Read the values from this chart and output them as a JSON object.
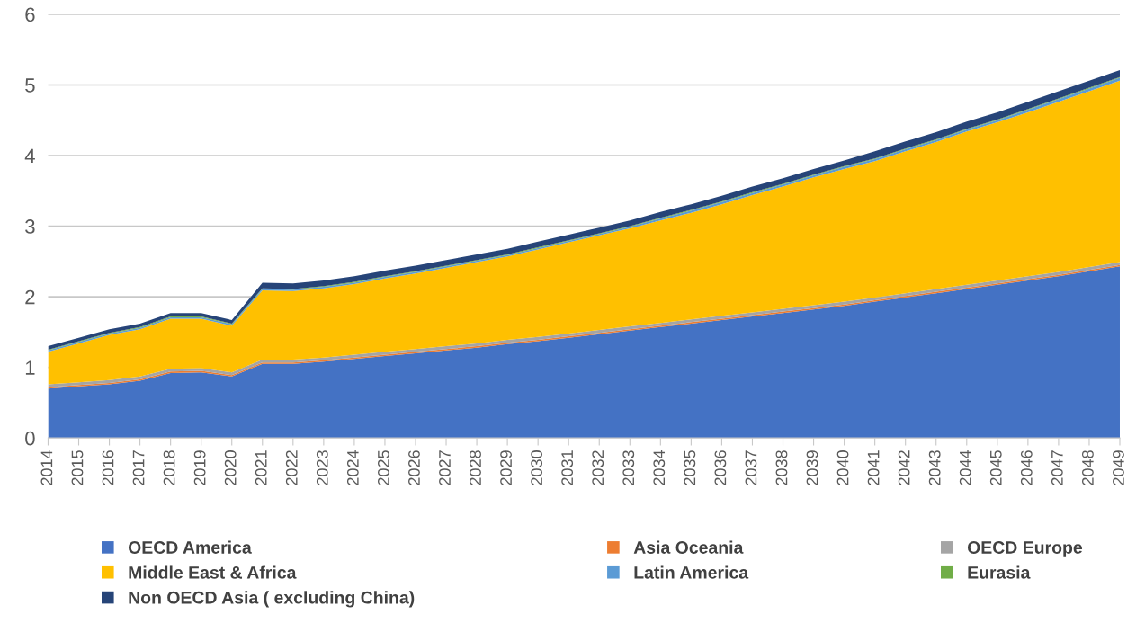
{
  "chart_data": {
    "type": "area",
    "stacked": true,
    "categories": [
      "2014",
      "2015",
      "2016",
      "2017",
      "2018",
      "2019",
      "2020",
      "2021",
      "2022",
      "2023",
      "2024",
      "2025",
      "2026",
      "2027",
      "2028",
      "2029",
      "2030",
      "2031",
      "2032",
      "2033",
      "2034",
      "2035",
      "2036",
      "2037",
      "2038",
      "2039",
      "2040",
      "2041",
      "2042",
      "2043",
      "2044",
      "2045",
      "2046",
      "2047",
      "2048",
      "2049"
    ],
    "series": [
      {
        "name": "OECD America",
        "color": "#4472c4",
        "values": [
          0.7,
          0.73,
          0.76,
          0.81,
          0.92,
          0.93,
          0.87,
          1.05,
          1.05,
          1.08,
          1.12,
          1.16,
          1.2,
          1.24,
          1.28,
          1.33,
          1.37,
          1.42,
          1.47,
          1.52,
          1.57,
          1.62,
          1.67,
          1.72,
          1.77,
          1.82,
          1.87,
          1.93,
          1.99,
          2.05,
          2.11,
          2.17,
          2.23,
          2.29,
          2.36,
          2.43
        ]
      },
      {
        "name": "Asia Oceania",
        "color": "#ed7d31",
        "values": [
          0.02,
          0.02,
          0.02,
          0.02,
          0.02,
          0.02,
          0.02,
          0.02,
          0.02,
          0.02,
          0.02,
          0.02,
          0.02,
          0.02,
          0.02,
          0.02,
          0.02,
          0.02,
          0.02,
          0.02,
          0.02,
          0.02,
          0.02,
          0.02,
          0.02,
          0.02,
          0.02,
          0.02,
          0.02,
          0.02,
          0.02,
          0.02,
          0.02,
          0.02,
          0.02,
          0.02
        ]
      },
      {
        "name": "OECD Europe",
        "color": "#a5a5a5",
        "values": [
          0.04,
          0.04,
          0.04,
          0.04,
          0.04,
          0.04,
          0.04,
          0.04,
          0.04,
          0.04,
          0.04,
          0.04,
          0.04,
          0.04,
          0.04,
          0.04,
          0.04,
          0.04,
          0.04,
          0.04,
          0.04,
          0.04,
          0.04,
          0.04,
          0.04,
          0.04,
          0.04,
          0.04,
          0.04,
          0.04,
          0.04,
          0.04,
          0.04,
          0.04,
          0.04,
          0.04
        ]
      },
      {
        "name": "Middle East & Africa",
        "color": "#ffc000",
        "values": [
          0.46,
          0.55,
          0.64,
          0.67,
          0.71,
          0.7,
          0.66,
          0.98,
          0.97,
          0.98,
          1.0,
          1.04,
          1.07,
          1.11,
          1.15,
          1.18,
          1.24,
          1.29,
          1.34,
          1.39,
          1.45,
          1.51,
          1.58,
          1.66,
          1.73,
          1.81,
          1.88,
          1.93,
          2.01,
          2.08,
          2.17,
          2.24,
          2.32,
          2.41,
          2.49,
          2.57
        ]
      },
      {
        "name": "Latin America",
        "color": "#5b9bd5",
        "values": [
          0.02,
          0.02,
          0.02,
          0.02,
          0.02,
          0.02,
          0.02,
          0.02,
          0.02,
          0.02,
          0.02,
          0.02,
          0.02,
          0.02,
          0.02,
          0.02,
          0.02,
          0.02,
          0.02,
          0.02,
          0.03,
          0.03,
          0.03,
          0.03,
          0.03,
          0.03,
          0.03,
          0.03,
          0.03,
          0.03,
          0.03,
          0.03,
          0.04,
          0.04,
          0.04,
          0.04
        ]
      },
      {
        "name": "Eurasia",
        "color": "#70ad47",
        "values": [
          0.01,
          0.01,
          0.01,
          0.01,
          0.01,
          0.01,
          0.01,
          0.01,
          0.01,
          0.01,
          0.01,
          0.01,
          0.01,
          0.01,
          0.01,
          0.01,
          0.01,
          0.01,
          0.01,
          0.01,
          0.01,
          0.01,
          0.01,
          0.01,
          0.01,
          0.01,
          0.01,
          0.01,
          0.01,
          0.01,
          0.01,
          0.01,
          0.01,
          0.01,
          0.01,
          0.01
        ]
      },
      {
        "name": "Non OECD Asia ( excluding China)",
        "color": "#264478",
        "values": [
          0.05,
          0.05,
          0.05,
          0.05,
          0.05,
          0.05,
          0.05,
          0.08,
          0.08,
          0.08,
          0.08,
          0.08,
          0.08,
          0.08,
          0.08,
          0.08,
          0.08,
          0.08,
          0.08,
          0.08,
          0.08,
          0.08,
          0.08,
          0.08,
          0.08,
          0.08,
          0.08,
          0.1,
          0.1,
          0.1,
          0.1,
          0.1,
          0.1,
          0.1,
          0.1,
          0.1
        ]
      }
    ],
    "ylim": [
      0,
      6
    ],
    "yticks": [
      0,
      1,
      2,
      3,
      4,
      5,
      6
    ],
    "grid": "y",
    "legend": "bottom"
  }
}
